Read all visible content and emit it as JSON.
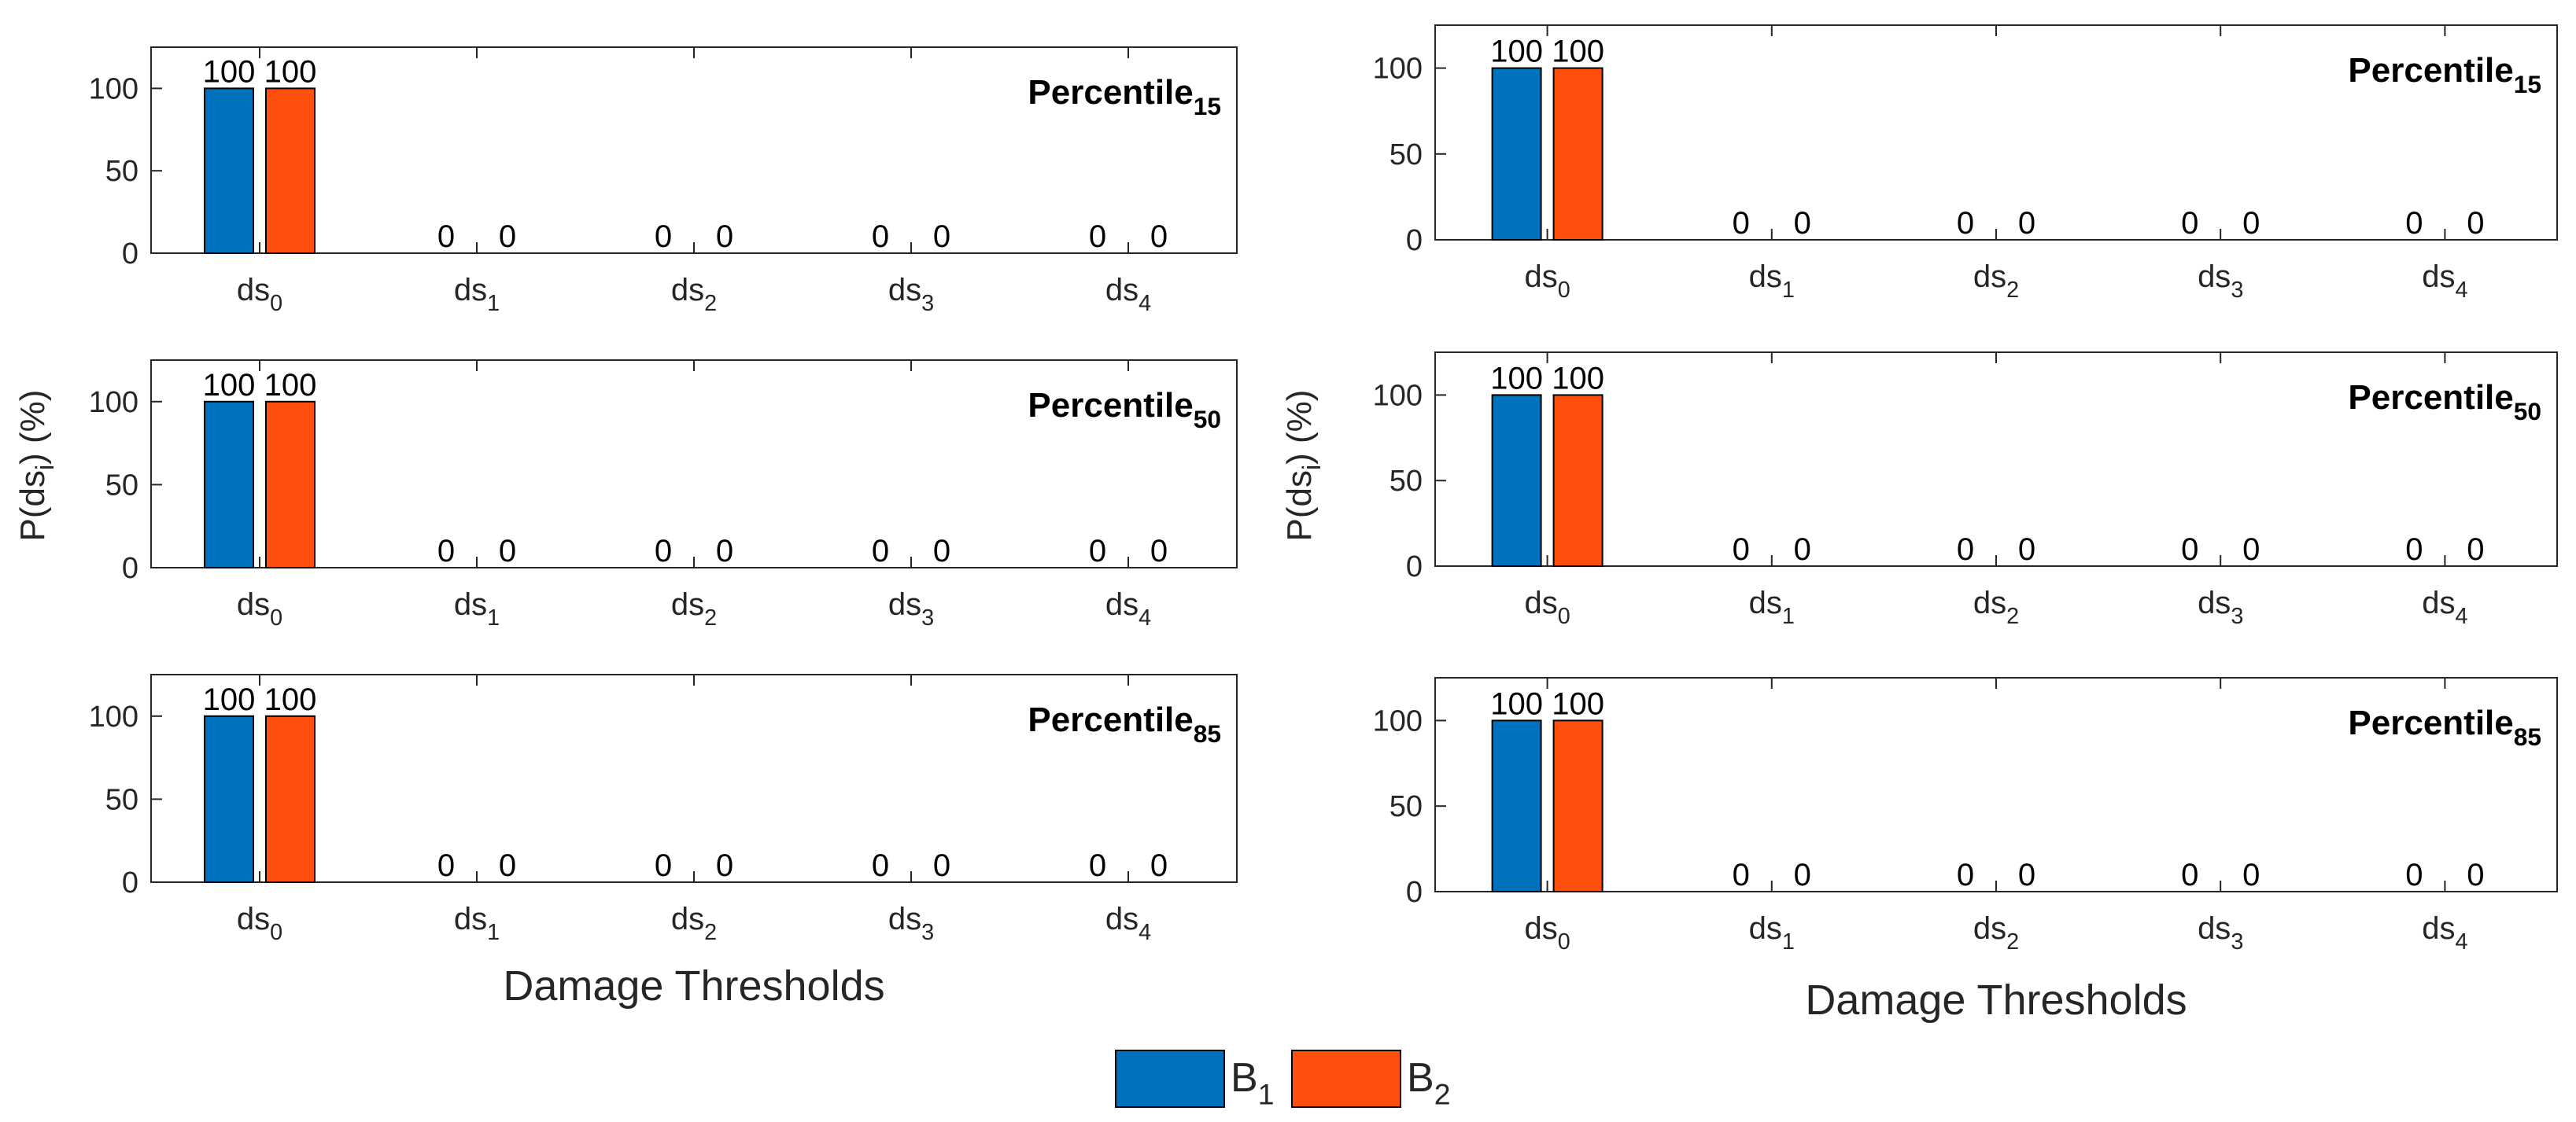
{
  "colors": {
    "b1": "#0072BD",
    "b2": "#FF4F0F",
    "axis": "#262626",
    "text": "#000000"
  },
  "chart_data": [
    {
      "type": "bar",
      "panel": "left",
      "row": 1,
      "title": "Percentile",
      "title_sub": "15",
      "categories": [
        {
          "base": "ds",
          "sub": "0"
        },
        {
          "base": "ds",
          "sub": "1"
        },
        {
          "base": "ds",
          "sub": "2"
        },
        {
          "base": "ds",
          "sub": "3"
        },
        {
          "base": "ds",
          "sub": "4"
        }
      ],
      "series": [
        {
          "name": "B1",
          "values": [
            100,
            0,
            0,
            0,
            0
          ]
        },
        {
          "name": "B2",
          "values": [
            100,
            0,
            0,
            0,
            0
          ]
        }
      ],
      "ylim": [
        0,
        125
      ],
      "yticks": [
        0,
        50,
        100
      ]
    },
    {
      "type": "bar",
      "panel": "left",
      "row": 2,
      "title": "Percentile",
      "title_sub": "50",
      "categories": [
        {
          "base": "ds",
          "sub": "0"
        },
        {
          "base": "ds",
          "sub": "1"
        },
        {
          "base": "ds",
          "sub": "2"
        },
        {
          "base": "ds",
          "sub": "3"
        },
        {
          "base": "ds",
          "sub": "4"
        }
      ],
      "series": [
        {
          "name": "B1",
          "values": [
            100,
            0,
            0,
            0,
            0
          ]
        },
        {
          "name": "B2",
          "values": [
            100,
            0,
            0,
            0,
            0
          ]
        }
      ],
      "ylim": [
        0,
        125
      ],
      "yticks": [
        0,
        50,
        100
      ]
    },
    {
      "type": "bar",
      "panel": "left",
      "row": 3,
      "title": "Percentile",
      "title_sub": "85",
      "categories": [
        {
          "base": "ds",
          "sub": "0"
        },
        {
          "base": "ds",
          "sub": "1"
        },
        {
          "base": "ds",
          "sub": "2"
        },
        {
          "base": "ds",
          "sub": "3"
        },
        {
          "base": "ds",
          "sub": "4"
        }
      ],
      "series": [
        {
          "name": "B1",
          "values": [
            100,
            0,
            0,
            0,
            0
          ]
        },
        {
          "name": "B2",
          "values": [
            100,
            0,
            0,
            0,
            0
          ]
        }
      ],
      "ylim": [
        0,
        125
      ],
      "yticks": [
        0,
        50,
        100
      ]
    },
    {
      "type": "bar",
      "panel": "right",
      "row": 1,
      "title": "Percentile",
      "title_sub": "15",
      "categories": [
        {
          "base": "ds",
          "sub": "0"
        },
        {
          "base": "ds",
          "sub": "1"
        },
        {
          "base": "ds",
          "sub": "2"
        },
        {
          "base": "ds",
          "sub": "3"
        },
        {
          "base": "ds",
          "sub": "4"
        }
      ],
      "series": [
        {
          "name": "B1",
          "values": [
            100,
            0,
            0,
            0,
            0
          ]
        },
        {
          "name": "B2",
          "values": [
            100,
            0,
            0,
            0,
            0
          ]
        }
      ],
      "ylim": [
        0,
        125
      ],
      "yticks": [
        0,
        50,
        100
      ]
    },
    {
      "type": "bar",
      "panel": "right",
      "row": 2,
      "title": "Percentile",
      "title_sub": "50",
      "categories": [
        {
          "base": "ds",
          "sub": "0"
        },
        {
          "base": "ds",
          "sub": "1"
        },
        {
          "base": "ds",
          "sub": "2"
        },
        {
          "base": "ds",
          "sub": "3"
        },
        {
          "base": "ds",
          "sub": "4"
        }
      ],
      "series": [
        {
          "name": "B1",
          "values": [
            100,
            0,
            0,
            0,
            0
          ]
        },
        {
          "name": "B2",
          "values": [
            100,
            0,
            0,
            0,
            0
          ]
        }
      ],
      "ylim": [
        0,
        125
      ],
      "yticks": [
        0,
        50,
        100
      ]
    },
    {
      "type": "bar",
      "panel": "right",
      "row": 3,
      "title": "Percentile",
      "title_sub": "85",
      "categories": [
        {
          "base": "ds",
          "sub": "0"
        },
        {
          "base": "ds",
          "sub": "1"
        },
        {
          "base": "ds",
          "sub": "2"
        },
        {
          "base": "ds",
          "sub": "3"
        },
        {
          "base": "ds",
          "sub": "4"
        }
      ],
      "series": [
        {
          "name": "B1",
          "values": [
            100,
            0,
            0,
            0,
            0
          ]
        },
        {
          "name": "B2",
          "values": [
            100,
            0,
            0,
            0,
            0
          ]
        }
      ],
      "ylim": [
        0,
        125
      ],
      "yticks": [
        0,
        50,
        100
      ]
    }
  ],
  "axis_labels": {
    "xlabel": "Damage Thresholds",
    "ylabel": {
      "prefix": "P(ds",
      "sub": "i",
      "suffix": ") (%)"
    }
  },
  "legend": [
    {
      "base": "B",
      "sub": "1",
      "color": "#0072BD"
    },
    {
      "base": "B",
      "sub": "2",
      "color": "#FF4F0F"
    }
  ]
}
